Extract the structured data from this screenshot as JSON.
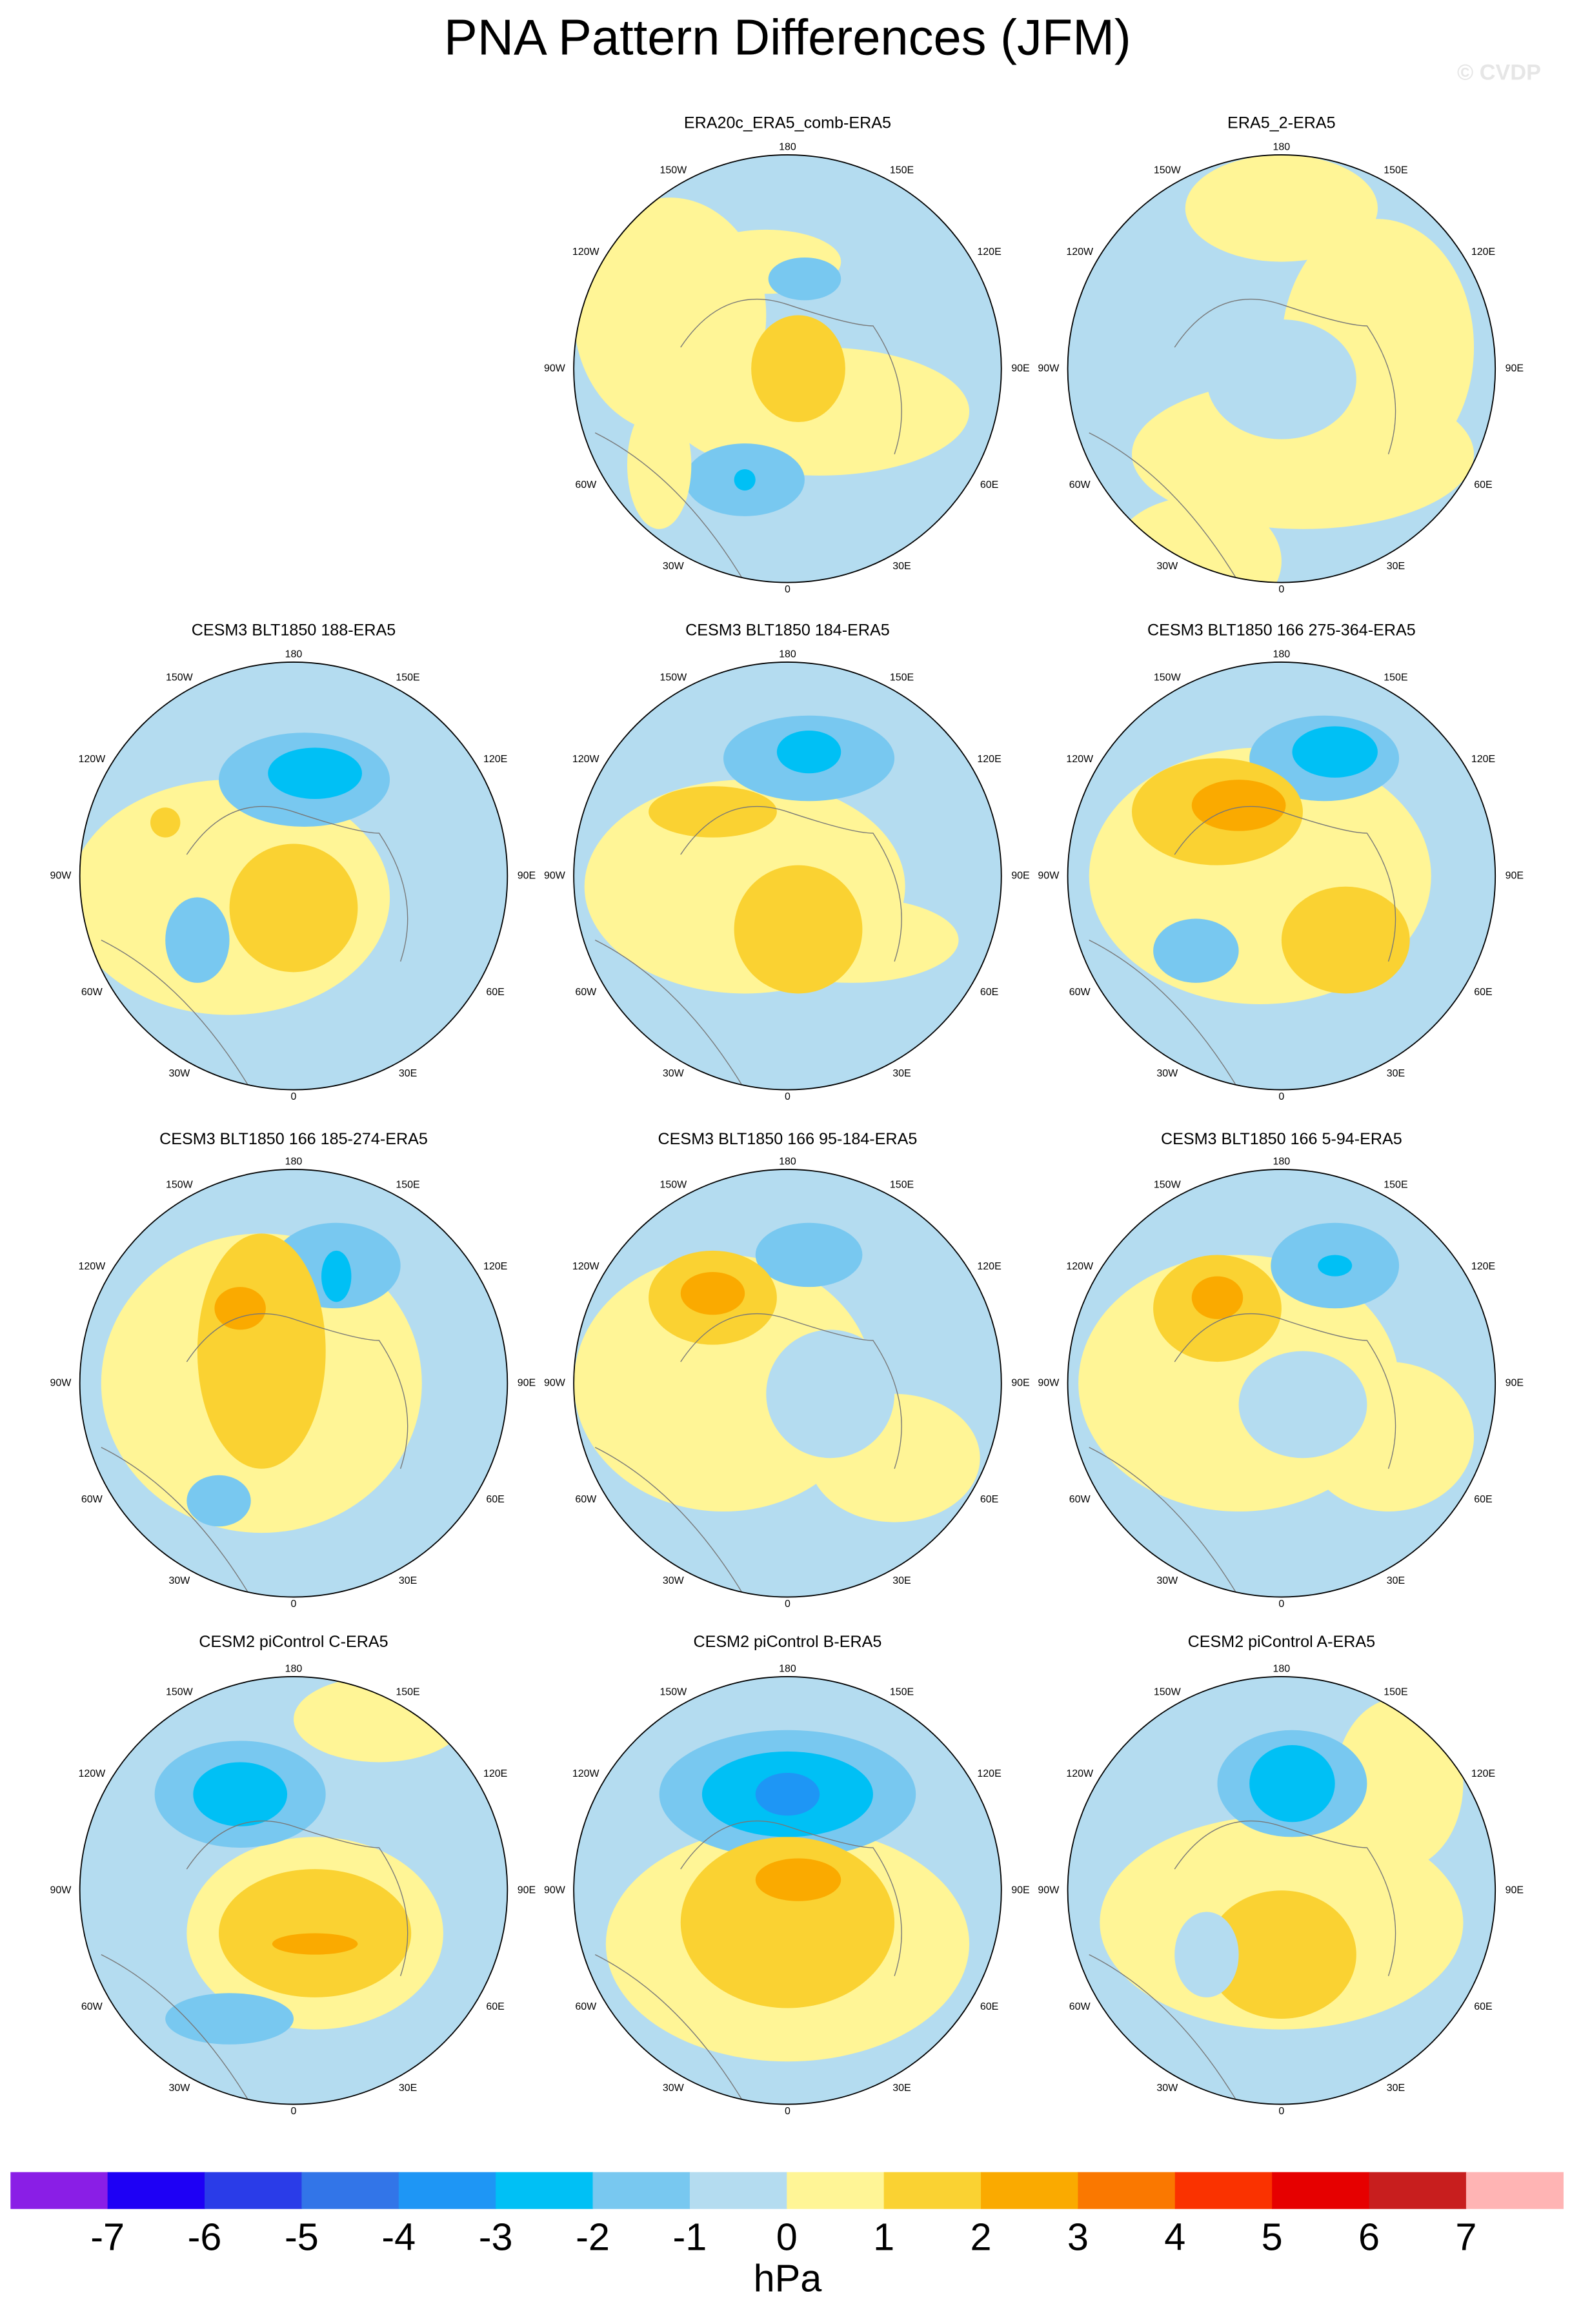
{
  "title": "PNA Pattern Differences (JFM)",
  "watermark": "© CVDP",
  "panels": [
    {
      "title": "ERA20c_ERA5_comb-ERA5"
    },
    {
      "title": "ERA5_2-ERA5"
    },
    {
      "title": "CESM3 BLT1850 188-ERA5"
    },
    {
      "title": "CESM3 BLT1850 184-ERA5"
    },
    {
      "title": "CESM3 BLT1850 166 275-364-ERA5"
    },
    {
      "title": "CESM3 BLT1850 166 185-274-ERA5"
    },
    {
      "title": "CESM3 BLT1850 166 95-184-ERA5"
    },
    {
      "title": "CESM3 BLT1850 166 5-94-ERA5"
    },
    {
      "title": "CESM2 piControl C-ERA5"
    },
    {
      "title": "CESM2 piControl B-ERA5"
    },
    {
      "title": "CESM2 piControl A-ERA5"
    }
  ],
  "lon_labels": [
    "180",
    "150E",
    "120E",
    "90E",
    "60E",
    "30E",
    "0",
    "30W",
    "60W",
    "90W",
    "120W",
    "150W"
  ],
  "colorbar": {
    "levels": [
      -7,
      -6,
      -5,
      -4,
      -3,
      -2,
      -1,
      0,
      1,
      2,
      3,
      4,
      5,
      6,
      7
    ],
    "colors": [
      "#8a1ee6",
      "#1e00f5",
      "#2a3ce8",
      "#3275e8",
      "#1e96f5",
      "#00c0f5",
      "#78c8f0",
      "#b4dcf0",
      "#fff596",
      "#fad232",
      "#faaa00",
      "#fa7800",
      "#fa3200",
      "#e60000",
      "#c81e1e",
      "#ffb4b4"
    ],
    "unit": "hPa"
  }
}
